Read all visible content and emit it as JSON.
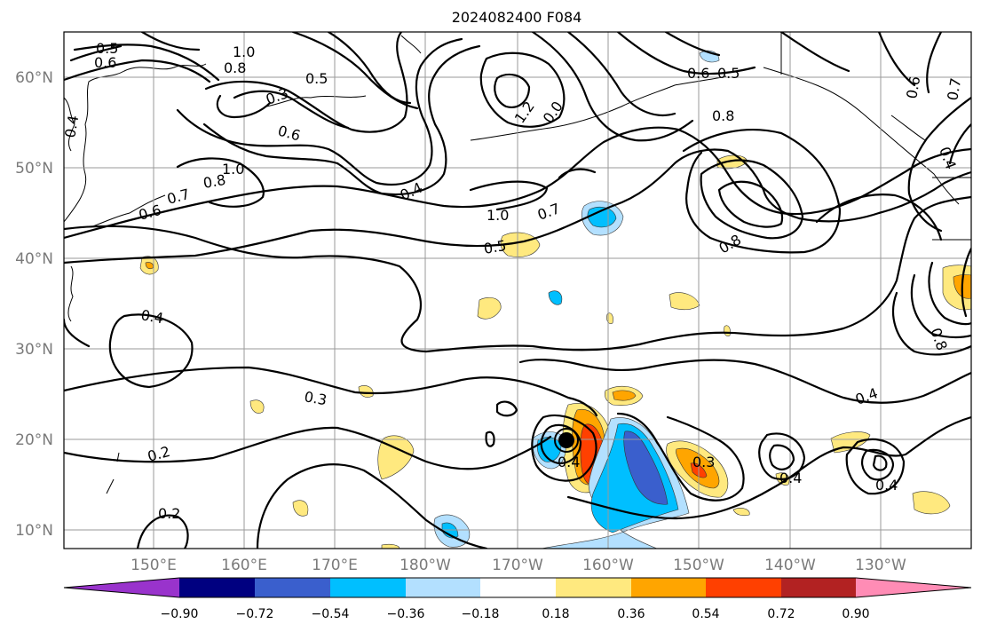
{
  "title": "2024082400 F084",
  "lat_labels": [
    "60°N",
    "50°N",
    "40°N",
    "30°N",
    "20°N",
    "10°N"
  ],
  "lon_labels": [
    "150°E",
    "160°E",
    "170°E",
    "180°W",
    "170°W",
    "160°W",
    "150°W",
    "140°W",
    "130°W"
  ],
  "contour_labels": [
    "0.5",
    "0.6",
    "1.0",
    "0.8",
    "0.5",
    "0.3",
    "0.6",
    "1.0",
    "0.8",
    "0.6",
    "0.7",
    "0.4",
    "1.2",
    "0.0",
    "0.6",
    "0.5",
    "0.8",
    "1.0",
    "0.7",
    "0.5",
    "0.8",
    "0.4",
    "0.3",
    "0.2",
    "0.2",
    "0.4",
    "0.3",
    "0.4",
    "0.4",
    "0.4",
    "0.6",
    "0.7",
    "0.4",
    "0.8",
    "0.4"
  ],
  "colorbar": {
    "ticks": [
      "−0.90",
      "−0.72",
      "−0.54",
      "−0.36",
      "−0.18",
      "0.18",
      "0.36",
      "0.54",
      "0.72",
      "0.90"
    ],
    "colors": [
      "#9933cc",
      "#000080",
      "#3a5fcd",
      "#00bfff",
      "#b3e0ff",
      "#ffffff",
      "#ffe97f",
      "#ffa500",
      "#ff4000",
      "#b22222",
      "#ff8cb5"
    ]
  },
  "map_extent": {
    "lon_west": "140°E",
    "lon_east": "120°W",
    "lat_south": "8°N",
    "lat_north": "65°N"
  }
}
